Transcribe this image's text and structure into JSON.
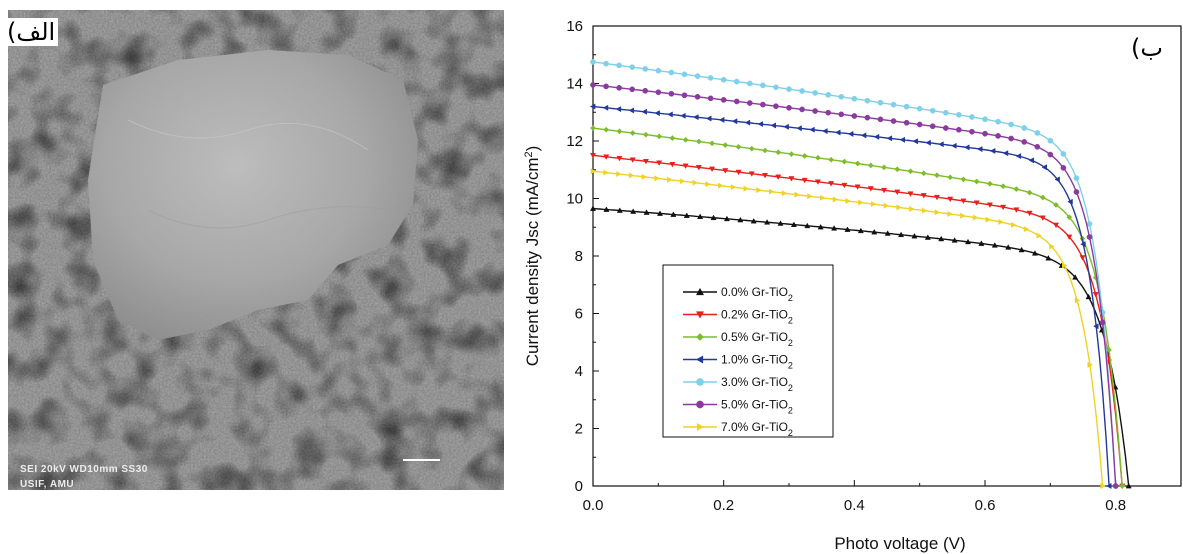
{
  "panels": {
    "left_label": "الف)",
    "right_label": "ب)"
  },
  "sem": {
    "info_line1": "SEI    20kV    WD10mm    SS30",
    "info_line2": "USIF, AMU"
  },
  "chart_data": {
    "type": "line",
    "title": "",
    "xlabel": "Photo voltage (V)",
    "ylabel": "Current density Jsc (mA/cm²)",
    "xlim": [
      0.0,
      0.9
    ],
    "ylim": [
      0,
      16
    ],
    "x_ticks": [
      "0.0",
      "0.2",
      "0.4",
      "0.6",
      "0.8"
    ],
    "y_ticks": [
      "0",
      "2",
      "4",
      "6",
      "8",
      "10",
      "12",
      "14",
      "16"
    ],
    "grid": false,
    "legend_position": "center-left",
    "series": [
      {
        "name": "0.0% Gr-TiO2",
        "label_main": "0.0% Gr-TiO",
        "label_sub": "2",
        "color": "#111111",
        "marker": "triangle-up",
        "isc": 9.65,
        "voc": 0.82,
        "slope": 1.6,
        "bend": 0.7,
        "n": 0.036
      },
      {
        "name": "0.2% Gr-TiO2",
        "label_main": "0.2% Gr-TiO",
        "label_sub": "2",
        "color": "#e8201c",
        "marker": "triangle-down",
        "isc": 11.5,
        "voc": 0.81,
        "slope": 2.5,
        "bend": 0.5,
        "n": 0.032
      },
      {
        "name": "0.5% Gr-TiO2",
        "label_main": "0.5% Gr-TiO",
        "label_sub": "2",
        "color": "#7cbd2a",
        "marker": "diamond",
        "isc": 12.45,
        "voc": 0.81,
        "slope": 2.8,
        "bend": 0.6,
        "n": 0.031
      },
      {
        "name": "1.0% Gr-TiO2",
        "label_main": "1.0% Gr-TiO",
        "label_sub": "2",
        "color": "#22399c",
        "marker": "triangle-left",
        "isc": 13.2,
        "voc": 0.79,
        "slope": 2.3,
        "bend": 0.3,
        "n": 0.029
      },
      {
        "name": "3.0% Gr-TiO2",
        "label_main": "3.0% Gr-TiO",
        "label_sub": "2",
        "color": "#7fd0ea",
        "marker": "circle",
        "isc": 14.75,
        "voc": 0.8,
        "slope": 3.0,
        "bend": 0.5,
        "n": 0.029
      },
      {
        "name": "5.0% Gr-TiO2",
        "label_main": "5.0% Gr-TiO",
        "label_sub": "2",
        "color": "#8b3a9e",
        "marker": "circle",
        "isc": 13.95,
        "voc": 0.8,
        "slope": 2.5,
        "bend": 0.5,
        "n": 0.03
      },
      {
        "name": "7.0% Gr-TiO2",
        "label_main": "7.0% Gr-TiO",
        "label_sub": "2",
        "color": "#f0d226",
        "marker": "triangle-right",
        "isc": 10.95,
        "voc": 0.78,
        "slope": 2.5,
        "bend": 0.4,
        "n": 0.03
      }
    ]
  }
}
